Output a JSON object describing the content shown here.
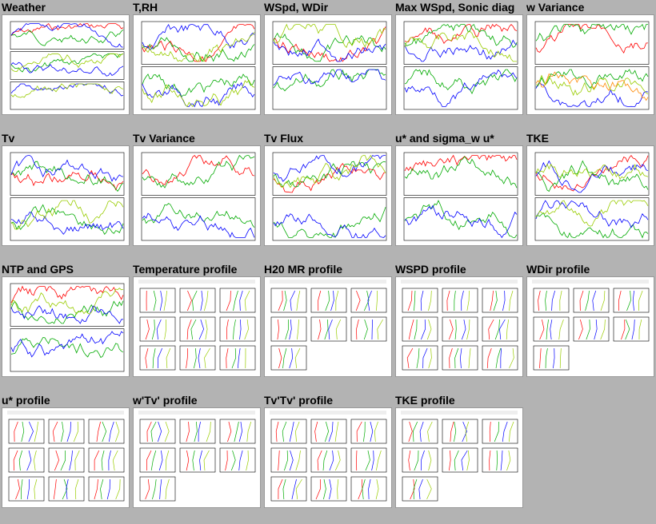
{
  "cells": [
    {
      "title": "Weather",
      "kind": "ts3"
    },
    {
      "title": "T,RH",
      "kind": "ts2"
    },
    {
      "title": "WSpd, WDir",
      "kind": "ts2"
    },
    {
      "title": "Max WSpd, Sonic diag",
      "kind": "ts2"
    },
    {
      "title": "w Variance",
      "kind": "ts2"
    },
    {
      "title": "Tv",
      "kind": "ts2"
    },
    {
      "title": "Tv Variance",
      "kind": "ts2"
    },
    {
      "title": "Tv Flux",
      "kind": "ts2"
    },
    {
      "title": "u* and sigma_w u*",
      "kind": "ts2"
    },
    {
      "title": "TKE",
      "kind": "ts2"
    },
    {
      "title": "NTP and GPS",
      "kind": "ts2"
    },
    {
      "title": "Temperature profile",
      "kind": "prof"
    },
    {
      "title": "H20 MR profile",
      "kind": "prof"
    },
    {
      "title": "WSPD profile",
      "kind": "prof"
    },
    {
      "title": "WDir profile",
      "kind": "prof"
    },
    {
      "title": "u* profile",
      "kind": "prof"
    },
    {
      "title": "w'Tv' profile",
      "kind": "prof"
    },
    {
      "title": "Tv'Tv' profile",
      "kind": "prof"
    },
    {
      "title": "TKE profile",
      "kind": "prof"
    }
  ],
  "colors": {
    "background": "#b3b3b3",
    "series": [
      "#000000",
      "#ff0000",
      "#00aa00",
      "#0000ff",
      "#99cc00",
      "#ff8800",
      "#cc00cc"
    ]
  }
}
